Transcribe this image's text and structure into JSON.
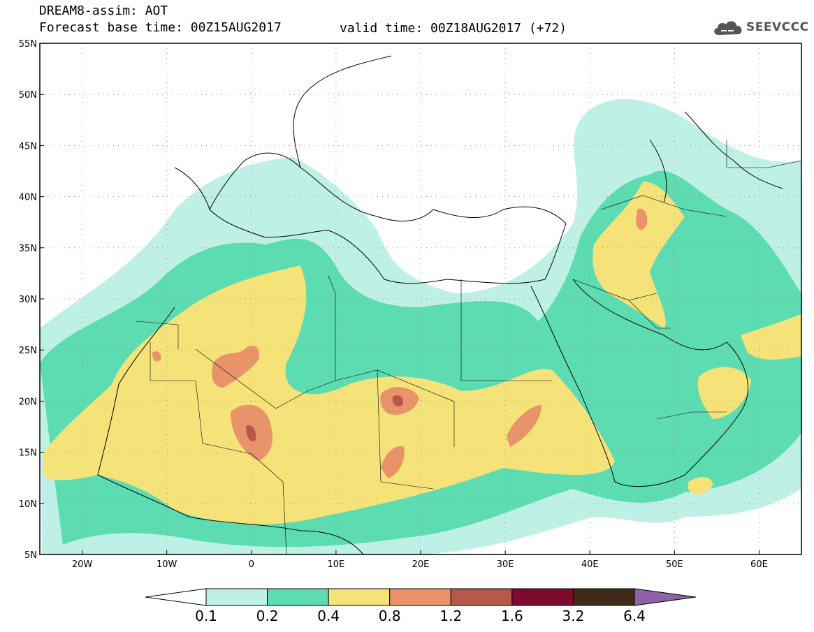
{
  "header": {
    "title": "DREAM8-assim: AOT",
    "base_time": "Forecast base time: 00Z15AUG2017",
    "valid_time": "valid time: 00Z18AUG2017 (+72)"
  },
  "logo": {
    "text": "SEEVCCC",
    "icon": "cloud-icon",
    "color": "#555555"
  },
  "map": {
    "lon_range": [
      -25,
      65
    ],
    "lat_range": [
      5,
      55
    ],
    "lat_ticks": [
      "55N",
      "50N",
      "45N",
      "40N",
      "35N",
      "30N",
      "25N",
      "20N",
      "15N",
      "10N",
      "5N"
    ],
    "lon_ticks": [
      "20W",
      "10W",
      "0",
      "10E",
      "20E",
      "30E",
      "40E",
      "50E",
      "60E"
    ],
    "grid": "dotted"
  },
  "colorbar": {
    "labels": [
      "0.1",
      "0.2",
      "0.4",
      "0.8",
      "1.2",
      "1.6",
      "3.2",
      "6.4"
    ],
    "colors": [
      "#ffffff",
      "#bff0e6",
      "#5cdcb0",
      "#f5e37a",
      "#e8936a",
      "#b7574a",
      "#7e0a2e",
      "#3e2a1a",
      "#8b63a6"
    ],
    "extend": "both"
  }
}
